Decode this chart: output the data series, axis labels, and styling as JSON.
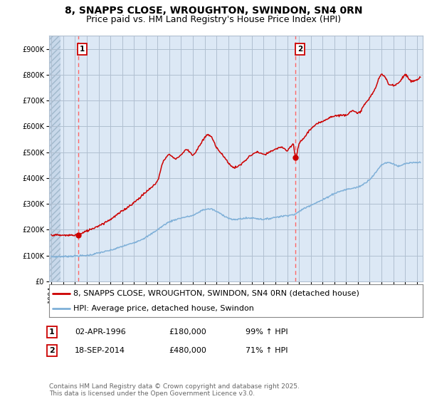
{
  "title": "8, SNAPPS CLOSE, WROUGHTON, SWINDON, SN4 0RN",
  "subtitle": "Price paid vs. HM Land Registry's House Price Index (HPI)",
  "ylim": [
    0,
    950000
  ],
  "yticks": [
    0,
    100000,
    200000,
    300000,
    400000,
    500000,
    600000,
    700000,
    800000,
    900000
  ],
  "ytick_labels": [
    "£0",
    "£100K",
    "£200K",
    "£300K",
    "£400K",
    "£500K",
    "£600K",
    "£700K",
    "£800K",
    "£900K"
  ],
  "xlim_start": 1993.8,
  "xlim_end": 2025.5,
  "background_color": "#ffffff",
  "plot_bg_color": "#dce8f5",
  "grid_color": "#b0bfd0",
  "red_line_color": "#cc0000",
  "blue_line_color": "#7fb0d8",
  "dashed_line_color": "#ff6666",
  "marker_color_red": "#cc0000",
  "sale1_date": 1996.25,
  "sale1_price": 180000,
  "sale2_date": 2014.72,
  "sale2_price": 480000,
  "legend_red_label": "8, SNAPPS CLOSE, WROUGHTON, SWINDON, SN4 0RN (detached house)",
  "legend_blue_label": "HPI: Average price, detached house, Swindon",
  "footer": "Contains HM Land Registry data © Crown copyright and database right 2025.\nThis data is licensed under the Open Government Licence v3.0.",
  "title_fontsize": 10,
  "subtitle_fontsize": 9,
  "tick_fontsize": 7,
  "legend_fontsize": 8,
  "annotation_fontsize": 8,
  "footer_fontsize": 6.5
}
